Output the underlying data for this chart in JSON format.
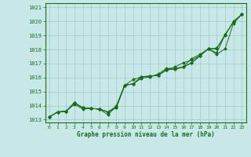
{
  "title": "Graphe pression niveau de la mer (hPa)",
  "bg_color": "#c8e8e8",
  "grid_color": "#a0c8c8",
  "line_color": "#1a6b1a",
  "xlim": [
    -0.5,
    23.5
  ],
  "ylim": [
    1012.8,
    1021.3
  ],
  "yticks": [
    1013,
    1014,
    1015,
    1016,
    1017,
    1018,
    1019,
    1020,
    1021
  ],
  "xticks": [
    0,
    1,
    2,
    3,
    4,
    5,
    6,
    7,
    8,
    9,
    10,
    11,
    12,
    13,
    14,
    15,
    16,
    17,
    18,
    19,
    20,
    21,
    22,
    23
  ],
  "series": [
    [
      1013.2,
      1013.55,
      1013.6,
      1014.2,
      1013.85,
      1013.8,
      1013.75,
      1013.55,
      1013.85,
      1015.45,
      1015.85,
      1016.05,
      1016.1,
      1016.15,
      1016.55,
      1016.6,
      1016.75,
      1017.05,
      1017.55,
      1018.05,
      1018.1,
      1019.0,
      1020.0,
      1020.5
    ],
    [
      1013.2,
      1013.55,
      1013.6,
      1014.2,
      1013.85,
      1013.8,
      1013.75,
      1013.55,
      1013.85,
      1015.45,
      1015.55,
      1016.05,
      1016.1,
      1016.15,
      1016.55,
      1016.75,
      1017.05,
      1017.25,
      1017.55,
      1018.05,
      1017.65,
      1018.05,
      1019.85,
      1020.5
    ],
    [
      1013.2,
      1013.55,
      1013.6,
      1014.1,
      1013.75,
      1013.8,
      1013.75,
      1013.35,
      1013.95,
      1015.45,
      1015.55,
      1015.95,
      1016.05,
      1016.25,
      1016.65,
      1016.65,
      1016.75,
      1017.35,
      1017.65,
      1018.05,
      1017.75,
      1019.05,
      1019.95,
      1020.5
    ],
    [
      1013.2,
      1013.55,
      1013.6,
      1014.2,
      1013.85,
      1013.8,
      1013.75,
      1013.55,
      1013.95,
      1015.45,
      1015.55,
      1016.05,
      1016.1,
      1016.15,
      1016.55,
      1016.6,
      1016.75,
      1017.05,
      1017.55,
      1018.05,
      1018.05,
      1019.05,
      1019.95,
      1020.5
    ]
  ]
}
